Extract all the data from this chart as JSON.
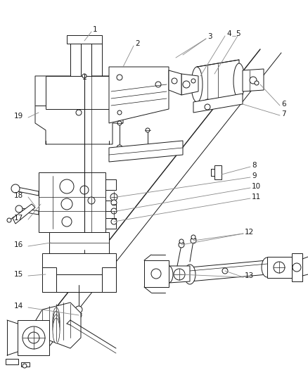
{
  "bg_color": "#ffffff",
  "line_color": "#1a1a1a",
  "gray_color": "#888888",
  "label_color": "#1a1a1a",
  "label_fontsize": 7.5,
  "figsize": [
    4.38,
    5.33
  ],
  "dpi": 100
}
